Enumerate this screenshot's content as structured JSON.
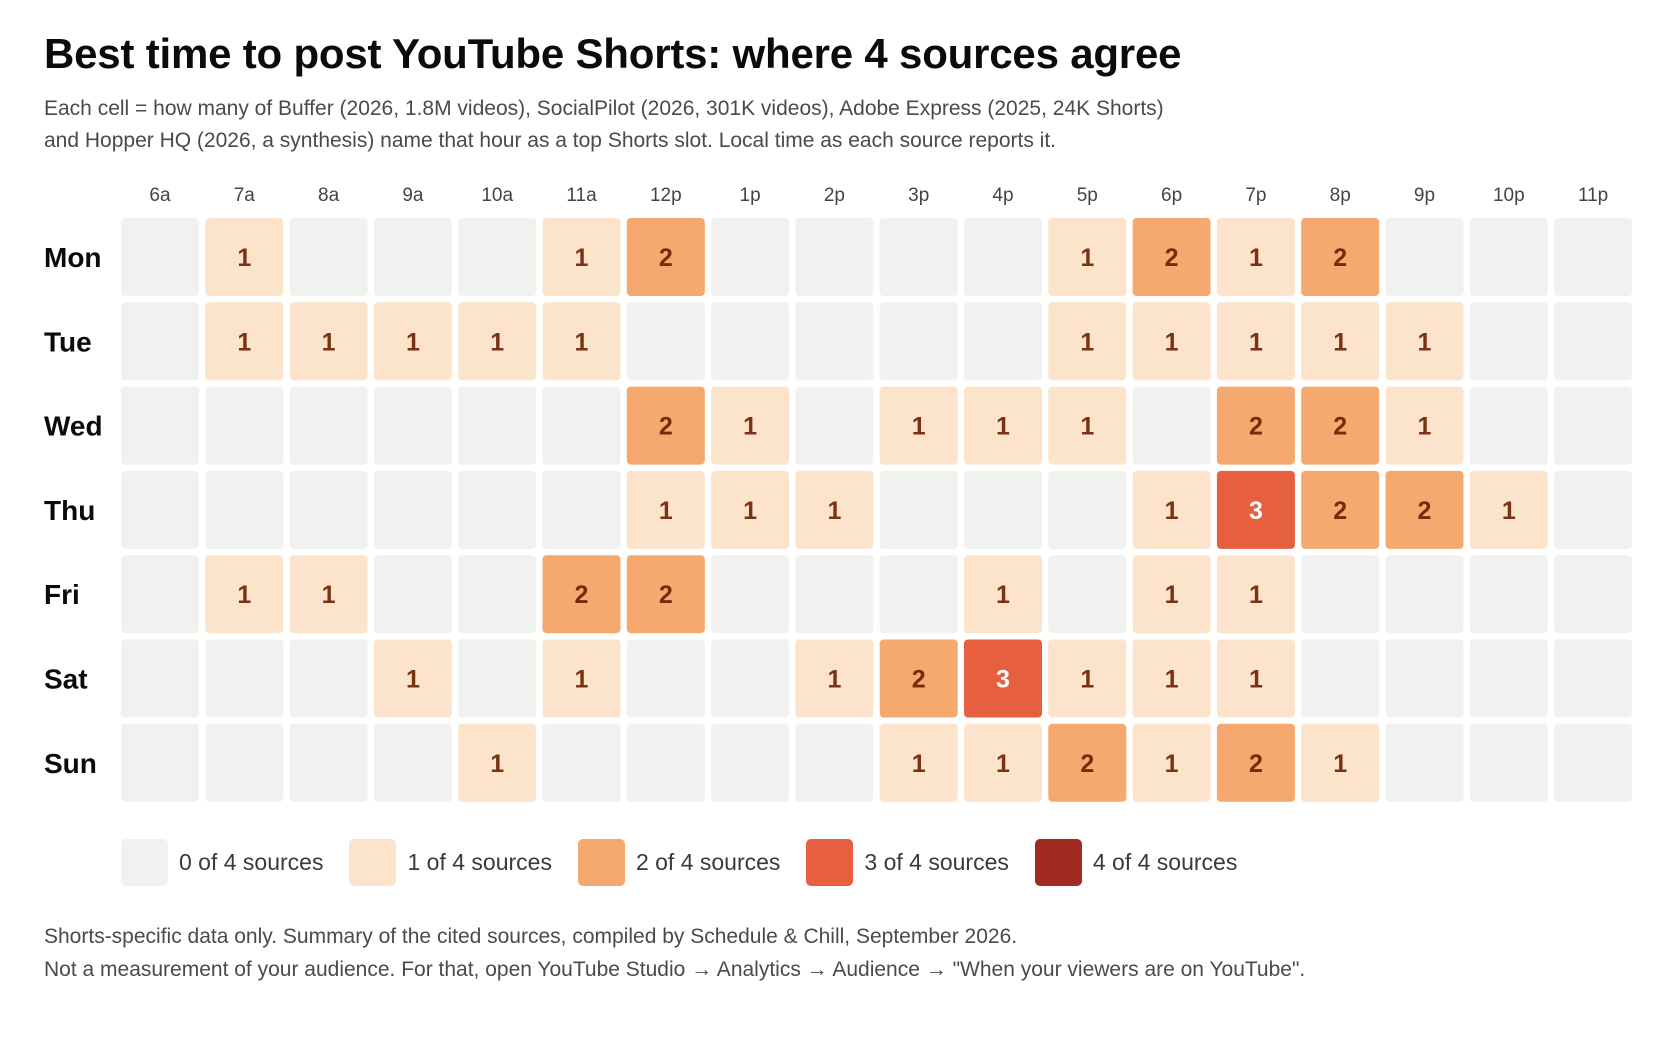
{
  "title": "Best time to post YouTube Shorts: where 4 sources agree",
  "subtitle": [
    "Each cell = how many of Buffer (2026, 1.8M videos), SocialPilot (2026, 301K videos), Adobe Express (2025, 24K Shorts)",
    "and Hopper HQ (2026, a synthesis) name that hour as a top Shorts slot. Local time as each source reports it."
  ],
  "chart_data": {
    "type": "heatmap",
    "title": "Best time to post YouTube Shorts: where 4 sources agree",
    "x_labels": [
      "6a",
      "7a",
      "8a",
      "9a",
      "10a",
      "11a",
      "12p",
      "1p",
      "2p",
      "3p",
      "4p",
      "5p",
      "6p",
      "7p",
      "8p",
      "9p",
      "10p",
      "11p"
    ],
    "y_labels": [
      "Mon",
      "Tue",
      "Wed",
      "Thu",
      "Fri",
      "Sat",
      "Sun"
    ],
    "values": [
      [
        0,
        1,
        0,
        0,
        0,
        1,
        2,
        0,
        0,
        0,
        0,
        1,
        2,
        1,
        2,
        0,
        0,
        0
      ],
      [
        0,
        1,
        1,
        1,
        1,
        1,
        0,
        0,
        0,
        0,
        0,
        1,
        1,
        1,
        1,
        1,
        0,
        0
      ],
      [
        0,
        0,
        0,
        0,
        0,
        0,
        2,
        1,
        0,
        1,
        1,
        1,
        0,
        2,
        2,
        1,
        0,
        0
      ],
      [
        0,
        0,
        0,
        0,
        0,
        0,
        1,
        1,
        1,
        0,
        0,
        0,
        1,
        3,
        2,
        2,
        1,
        0
      ],
      [
        0,
        1,
        1,
        0,
        0,
        2,
        2,
        0,
        0,
        0,
        1,
        0,
        1,
        1,
        0,
        0,
        0,
        0
      ],
      [
        0,
        0,
        0,
        1,
        0,
        1,
        0,
        0,
        1,
        2,
        3,
        1,
        1,
        1,
        0,
        0,
        0,
        0
      ],
      [
        0,
        0,
        0,
        0,
        1,
        0,
        0,
        0,
        0,
        1,
        1,
        2,
        1,
        2,
        1,
        0,
        0,
        0
      ]
    ],
    "value_range": [
      0,
      4
    ],
    "color_scale": [
      "#f1f1ef",
      "#fce3cc",
      "#f5a96e",
      "#e65f3f",
      "#a12b22"
    ],
    "text_colors": [
      "#f1f1ef",
      "#7a3312",
      "#7a2a0a",
      "#ffffff",
      "#ffffff"
    ],
    "legend": [
      {
        "value": 0,
        "label": "0 of 4 sources"
      },
      {
        "value": 1,
        "label": "1 of 4 sources"
      },
      {
        "value": 2,
        "label": "2 of 4 sources"
      },
      {
        "value": 3,
        "label": "3 of 4 sources"
      },
      {
        "value": 4,
        "label": "4 of 4 sources"
      }
    ],
    "zero_cells_labeled": false
  },
  "footnote": [
    "Shorts-specific data only. Summary of the cited sources, compiled by Schedule & Chill, September 2026.",
    "Not a measurement of your audience. For that, open YouTube Studio → Analytics → Audience → \"When your viewers are on YouTube\"."
  ]
}
